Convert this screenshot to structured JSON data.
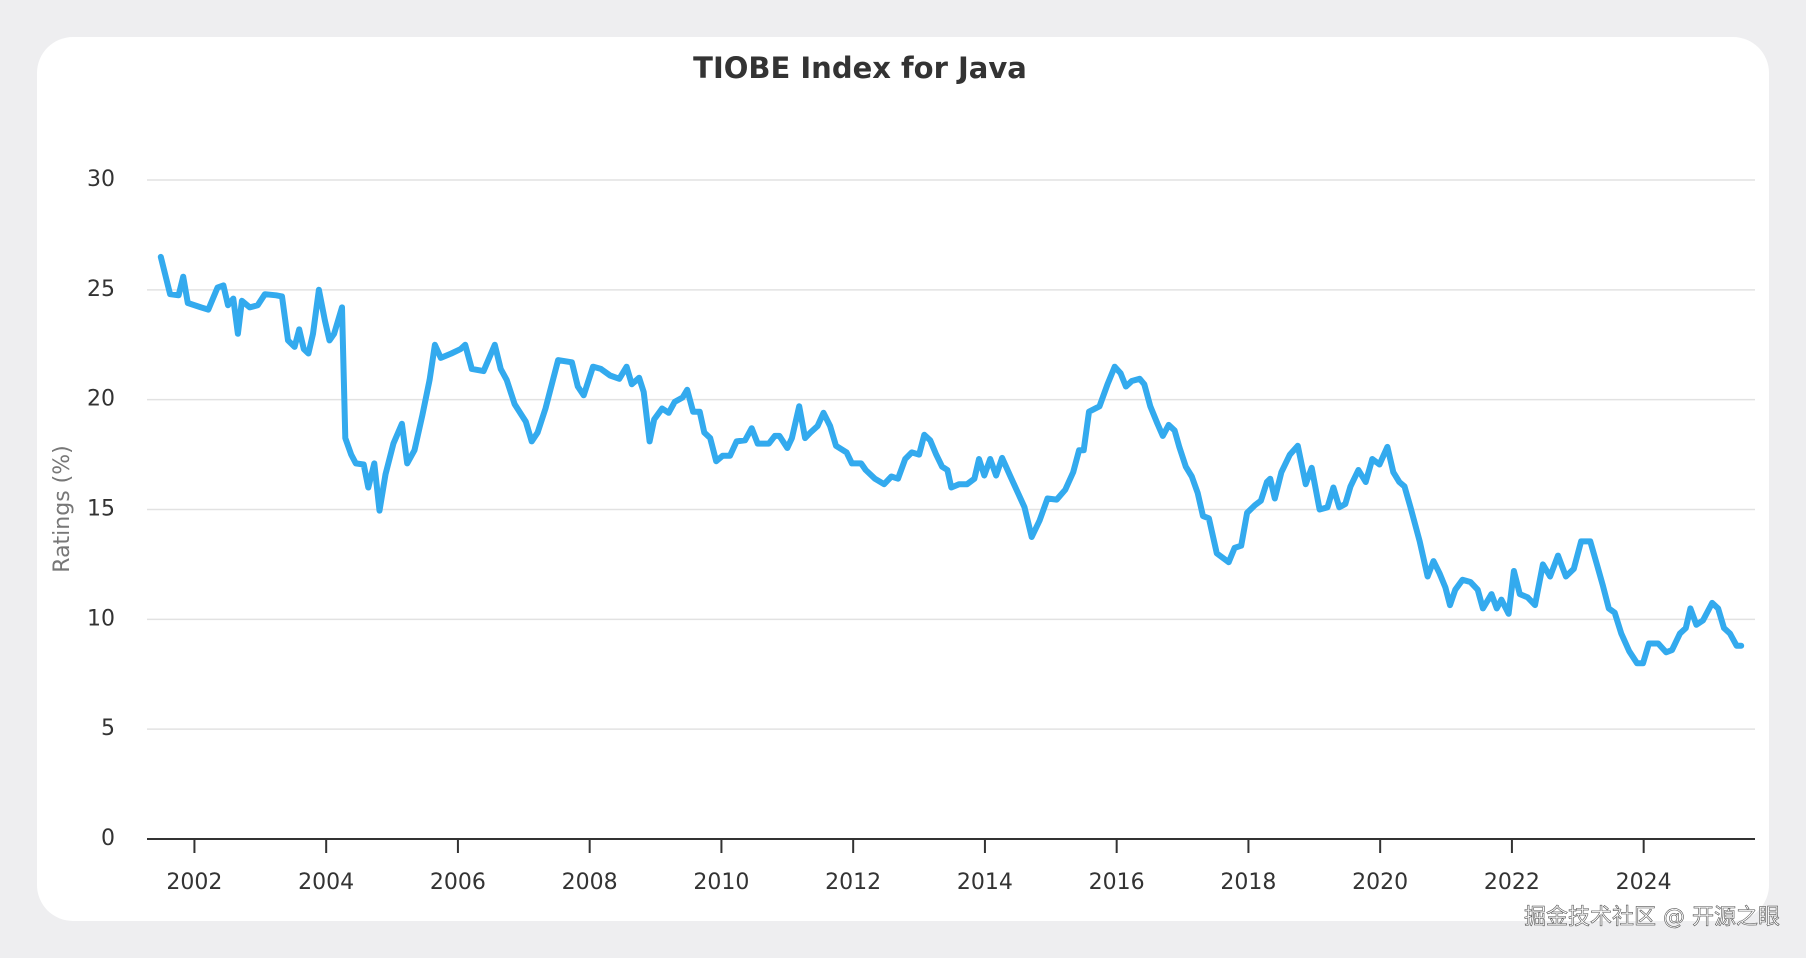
{
  "chart_data": {
    "type": "line",
    "title": "TIOBE Index for Java",
    "y_label": "Ratings (%)",
    "watermark": "掘金技术社区 @ 开源之眼",
    "xlim": [
      2001.28,
      2025.69
    ],
    "xticks": [
      2002,
      2004,
      2006,
      2008,
      2010,
      2012,
      2014,
      2016,
      2018,
      2020,
      2022,
      2024
    ],
    "ylim": [
      0,
      30
    ],
    "yticks": [
      0,
      5,
      10,
      15,
      20,
      25,
      30
    ],
    "grid": true,
    "series": [
      {
        "name": "Java",
        "color": "#33aaee",
        "x": [
          2001.49,
          2001.63,
          2001.76,
          2001.83,
          2001.9,
          2002.1,
          2002.21,
          2002.35,
          2002.44,
          2002.51,
          2002.59,
          2002.66,
          2002.72,
          2002.84,
          2002.96,
          2003.07,
          2003.24,
          2003.33,
          2003.42,
          2003.52,
          2003.59,
          2003.66,
          2003.73,
          2003.8,
          2003.89,
          2003.98,
          2004.05,
          2004.12,
          2004.24,
          2004.29,
          2004.38,
          2004.45,
          2004.57,
          2004.64,
          2004.73,
          2004.81,
          2004.9,
          2005.02,
          2005.15,
          2005.23,
          2005.34,
          2005.46,
          2005.57,
          2005.65,
          2005.74,
          2005.9,
          2006.04,
          2006.11,
          2006.21,
          2006.39,
          2006.56,
          2006.65,
          2006.74,
          2006.86,
          2007.03,
          2007.12,
          2007.21,
          2007.33,
          2007.52,
          2007.73,
          2007.82,
          2007.91,
          2008.05,
          2008.17,
          2008.31,
          2008.45,
          2008.56,
          2008.64,
          2008.75,
          2008.82,
          2008.91,
          2008.98,
          2009.1,
          2009.2,
          2009.29,
          2009.41,
          2009.48,
          2009.57,
          2009.67,
          2009.74,
          2009.83,
          2009.92,
          2010.02,
          2010.13,
          2010.23,
          2010.36,
          2010.46,
          2010.55,
          2010.72,
          2010.81,
          2010.88,
          2011.0,
          2011.07,
          2011.18,
          2011.27,
          2011.35,
          2011.46,
          2011.55,
          2011.65,
          2011.74,
          2011.9,
          2011.98,
          2012.12,
          2012.19,
          2012.33,
          2012.47,
          2012.58,
          2012.68,
          2012.79,
          2012.89,
          2013.0,
          2013.08,
          2013.17,
          2013.26,
          2013.35,
          2013.43,
          2013.49,
          2013.61,
          2013.73,
          2013.84,
          2013.91,
          2013.99,
          2014.08,
          2014.17,
          2014.26,
          2014.38,
          2014.48,
          2014.6,
          2014.71,
          2014.83,
          2014.95,
          2015.09,
          2015.22,
          2015.34,
          2015.43,
          2015.5,
          2015.58,
          2015.74,
          2015.86,
          2015.97,
          2016.06,
          2016.14,
          2016.23,
          2016.35,
          2016.42,
          2016.51,
          2016.62,
          2016.7,
          2016.79,
          2016.88,
          2016.95,
          2017.05,
          2017.14,
          2017.23,
          2017.31,
          2017.4,
          2017.52,
          2017.7,
          2017.79,
          2017.89,
          2017.98,
          2018.1,
          2018.19,
          2018.28,
          2018.33,
          2018.4,
          2018.5,
          2018.63,
          2018.75,
          2018.87,
          2018.96,
          2019.08,
          2019.2,
          2019.29,
          2019.38,
          2019.47,
          2019.55,
          2019.67,
          2019.78,
          2019.88,
          2019.99,
          2020.11,
          2020.2,
          2020.29,
          2020.37,
          2020.46,
          2020.6,
          2020.72,
          2020.81,
          2020.9,
          2020.99,
          2021.06,
          2021.14,
          2021.25,
          2021.37,
          2021.48,
          2021.56,
          2021.69,
          2021.77,
          2021.84,
          2021.95,
          2022.03,
          2022.12,
          2022.24,
          2022.35,
          2022.47,
          2022.58,
          2022.7,
          2022.82,
          2022.94,
          2023.05,
          2023.19,
          2023.29,
          2023.38,
          2023.47,
          2023.56,
          2023.66,
          2023.78,
          2023.9,
          2023.99,
          2024.08,
          2024.22,
          2024.34,
          2024.43,
          2024.55,
          2024.64,
          2024.71,
          2024.8,
          2024.9,
          2025.04,
          2025.13,
          2025.22,
          2025.31,
          2025.41,
          2025.48
        ],
        "values": [
          26.5,
          24.8,
          24.75,
          25.6,
          24.4,
          24.2,
          24.1,
          25.1,
          25.2,
          24.3,
          24.6,
          23.0,
          24.5,
          24.2,
          24.3,
          24.8,
          24.75,
          24.7,
          22.7,
          22.4,
          23.2,
          22.3,
          22.1,
          23.0,
          25.0,
          23.6,
          22.7,
          23.0,
          24.2,
          18.25,
          17.5,
          17.1,
          17.05,
          16.0,
          17.1,
          14.95,
          16.6,
          18.0,
          18.9,
          17.1,
          17.7,
          19.3,
          20.9,
          22.5,
          21.9,
          22.1,
          22.3,
          22.5,
          21.4,
          21.3,
          22.5,
          21.4,
          20.9,
          19.8,
          19.0,
          18.1,
          18.5,
          19.6,
          21.8,
          21.7,
          20.6,
          20.2,
          21.5,
          21.4,
          21.1,
          20.95,
          21.5,
          20.7,
          21.0,
          20.35,
          18.1,
          19.1,
          19.6,
          19.4,
          19.9,
          20.1,
          20.45,
          19.45,
          19.45,
          18.5,
          18.25,
          17.2,
          17.45,
          17.45,
          18.1,
          18.15,
          18.7,
          18.0,
          18.0,
          18.35,
          18.35,
          17.8,
          18.25,
          19.7,
          18.25,
          18.5,
          18.8,
          19.4,
          18.8,
          17.9,
          17.6,
          17.1,
          17.1,
          16.8,
          16.4,
          16.15,
          16.5,
          16.4,
          17.3,
          17.6,
          17.5,
          18.4,
          18.15,
          17.5,
          16.95,
          16.8,
          16.0,
          16.15,
          16.15,
          16.4,
          17.3,
          16.55,
          17.3,
          16.55,
          17.35,
          16.55,
          15.9,
          15.1,
          13.75,
          14.5,
          15.5,
          15.45,
          15.9,
          16.7,
          17.7,
          17.7,
          19.45,
          19.7,
          20.7,
          21.5,
          21.2,
          20.6,
          20.85,
          20.95,
          20.7,
          19.7,
          18.9,
          18.35,
          18.85,
          18.6,
          17.85,
          16.95,
          16.5,
          15.75,
          14.7,
          14.6,
          13.0,
          12.6,
          13.25,
          13.35,
          14.85,
          15.2,
          15.4,
          16.25,
          16.4,
          15.5,
          16.7,
          17.5,
          17.9,
          16.15,
          16.9,
          15.0,
          15.1,
          16.0,
          15.1,
          15.25,
          16.05,
          16.8,
          16.25,
          17.3,
          17.05,
          17.85,
          16.7,
          16.25,
          16.05,
          15.1,
          13.55,
          11.95,
          12.65,
          12.1,
          11.45,
          10.65,
          11.35,
          11.8,
          11.7,
          11.35,
          10.5,
          11.15,
          10.5,
          10.9,
          10.25,
          12.2,
          11.15,
          11.0,
          10.65,
          12.5,
          11.95,
          12.9,
          11.95,
          12.3,
          13.55,
          13.55,
          12.5,
          11.55,
          10.5,
          10.3,
          9.35,
          8.55,
          8.0,
          8.0,
          8.9,
          8.9,
          8.5,
          8.6,
          9.35,
          9.6,
          10.5,
          9.75,
          9.95,
          10.75,
          10.5,
          9.6,
          9.35,
          8.8,
          8.8
        ]
      }
    ]
  }
}
